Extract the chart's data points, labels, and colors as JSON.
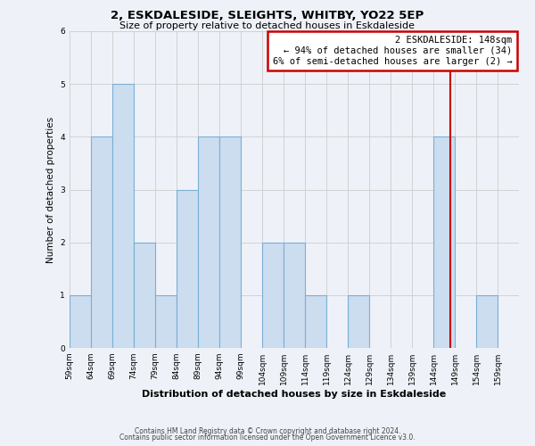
{
  "title": "2, ESKDALESIDE, SLEIGHTS, WHITBY, YO22 5EP",
  "subtitle": "Size of property relative to detached houses in Eskdaleside",
  "xlabel": "Distribution of detached houses by size in Eskdaleside",
  "ylabel": "Number of detached properties",
  "footer_line1": "Contains HM Land Registry data © Crown copyright and database right 2024.",
  "footer_line2": "Contains public sector information licensed under the Open Government Licence v3.0.",
  "bin_labels": [
    "59sqm",
    "64sqm",
    "69sqm",
    "74sqm",
    "79sqm",
    "84sqm",
    "89sqm",
    "94sqm",
    "99sqm",
    "104sqm",
    "109sqm",
    "114sqm",
    "119sqm",
    "124sqm",
    "129sqm",
    "134sqm",
    "139sqm",
    "144sqm",
    "149sqm",
    "154sqm",
    "159sqm"
  ],
  "bar_values": [
    1,
    4,
    5,
    2,
    1,
    3,
    4,
    4,
    0,
    2,
    2,
    1,
    0,
    1,
    0,
    0,
    0,
    4,
    0,
    1,
    0
  ],
  "bar_color": "#ccddf0",
  "bar_edge_color": "#7aafd4",
  "ylim": [
    0,
    6
  ],
  "yticks": [
    0,
    1,
    2,
    3,
    4,
    5,
    6
  ],
  "property_size": 148,
  "annotation_line1": "2 ESKDALESIDE: 148sqm",
  "annotation_line2": "← 94% of detached houses are smaller (34)",
  "annotation_line3": "6% of semi-detached houses are larger (2) →",
  "vline_color": "#cc0000",
  "annotation_box_edge_color": "#cc0000",
  "background_color": "#eef2f8"
}
